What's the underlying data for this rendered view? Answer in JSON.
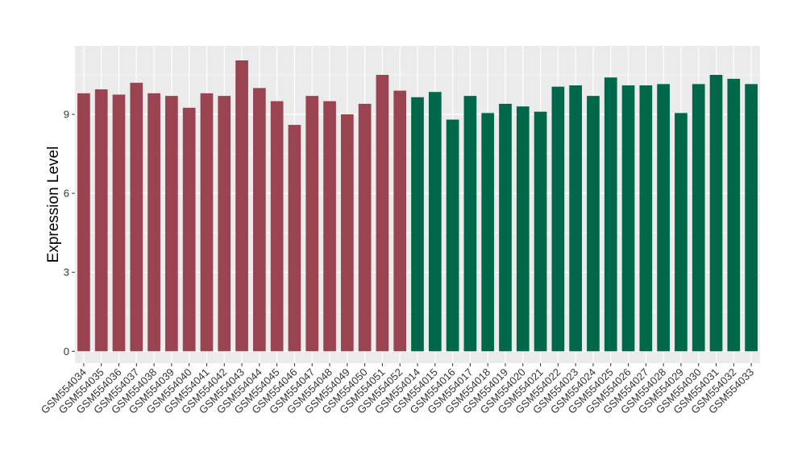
{
  "chart_data": {
    "type": "bar",
    "title": "",
    "xlabel": "",
    "ylabel": "Expression Level",
    "ylim": [
      -0.45,
      11.6
    ],
    "yticks": [
      0,
      3,
      6,
      9
    ],
    "grid": true,
    "legend": "none",
    "panel_background": "#EBEBEB",
    "groups": [
      {
        "color": "#9B4451",
        "categories": [
          "GSM554034",
          "GSM554035",
          "GSM554036",
          "GSM554037",
          "GSM554038",
          "GSM554039",
          "GSM554040",
          "GSM554041",
          "GSM554042",
          "GSM554043",
          "GSM554044",
          "GSM554045",
          "GSM554046",
          "GSM554047",
          "GSM554048",
          "GSM554049",
          "GSM554050",
          "GSM554051",
          "GSM554052"
        ]
      },
      {
        "color": "#00684A",
        "categories": [
          "GSM554014",
          "GSM554015",
          "GSM554016",
          "GSM554017",
          "GSM554018",
          "GSM554019",
          "GSM554020",
          "GSM554021",
          "GSM554022",
          "GSM554023",
          "GSM554024",
          "GSM554025",
          "GSM554026",
          "GSM554027",
          "GSM554028",
          "GSM554029",
          "GSM554030",
          "GSM554031",
          "GSM554032",
          "GSM554033"
        ]
      }
    ],
    "categories": [
      "GSM554034",
      "GSM554035",
      "GSM554036",
      "GSM554037",
      "GSM554038",
      "GSM554039",
      "GSM554040",
      "GSM554041",
      "GSM554042",
      "GSM554043",
      "GSM554044",
      "GSM554045",
      "GSM554046",
      "GSM554047",
      "GSM554048",
      "GSM554049",
      "GSM554050",
      "GSM554051",
      "GSM554052",
      "GSM554014",
      "GSM554015",
      "GSM554016",
      "GSM554017",
      "GSM554018",
      "GSM554019",
      "GSM554020",
      "GSM554021",
      "GSM554022",
      "GSM554023",
      "GSM554024",
      "GSM554025",
      "GSM554026",
      "GSM554027",
      "GSM554028",
      "GSM554029",
      "GSM554030",
      "GSM554031",
      "GSM554032",
      "GSM554033"
    ],
    "values": [
      9.8,
      9.95,
      9.75,
      10.2,
      9.8,
      9.7,
      9.25,
      9.8,
      9.7,
      11.05,
      10.0,
      9.5,
      8.6,
      9.7,
      9.5,
      9.0,
      9.4,
      10.5,
      9.9,
      9.65,
      9.85,
      8.8,
      9.7,
      9.05,
      9.4,
      9.3,
      9.1,
      10.05,
      10.1,
      9.7,
      10.4,
      10.1,
      10.1,
      10.15,
      9.05,
      10.15,
      10.5,
      10.35,
      10.15
    ]
  }
}
